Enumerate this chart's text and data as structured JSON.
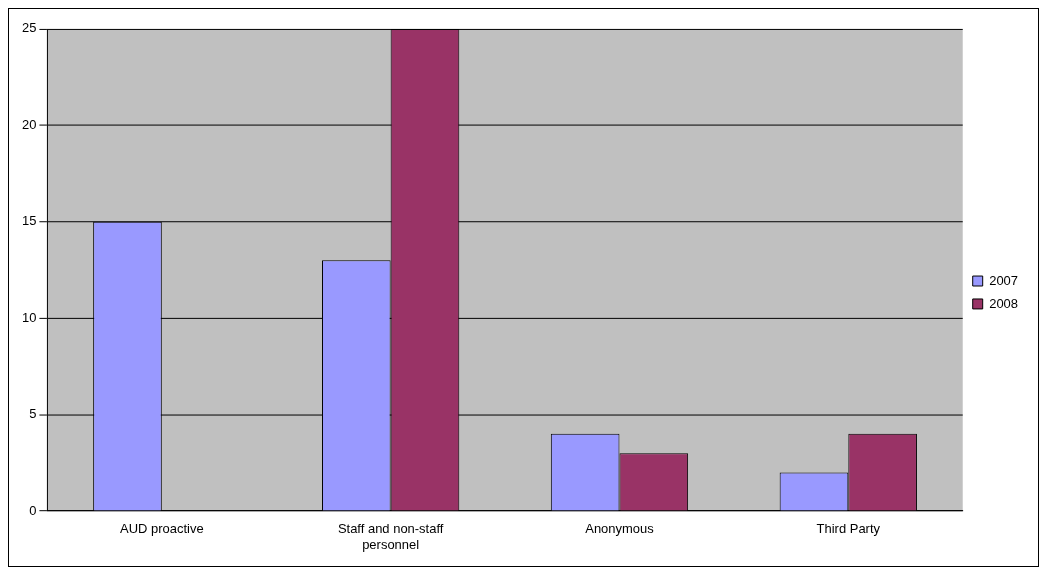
{
  "chart_data": {
    "type": "bar",
    "categories": [
      "AUD proactive",
      "Staff and non-staff personnel",
      "Anonymous",
      "Third Party"
    ],
    "series": [
      {
        "name": "2007",
        "color": "#9999ff",
        "values": [
          15,
          13,
          4,
          2
        ]
      },
      {
        "name": "2008",
        "color": "#993366",
        "values": [
          0,
          25,
          3,
          4
        ]
      }
    ],
    "ylim": [
      0,
      25
    ],
    "yticks": [
      0,
      5,
      10,
      15,
      20,
      25
    ],
    "grid": "y",
    "legend": "right"
  }
}
